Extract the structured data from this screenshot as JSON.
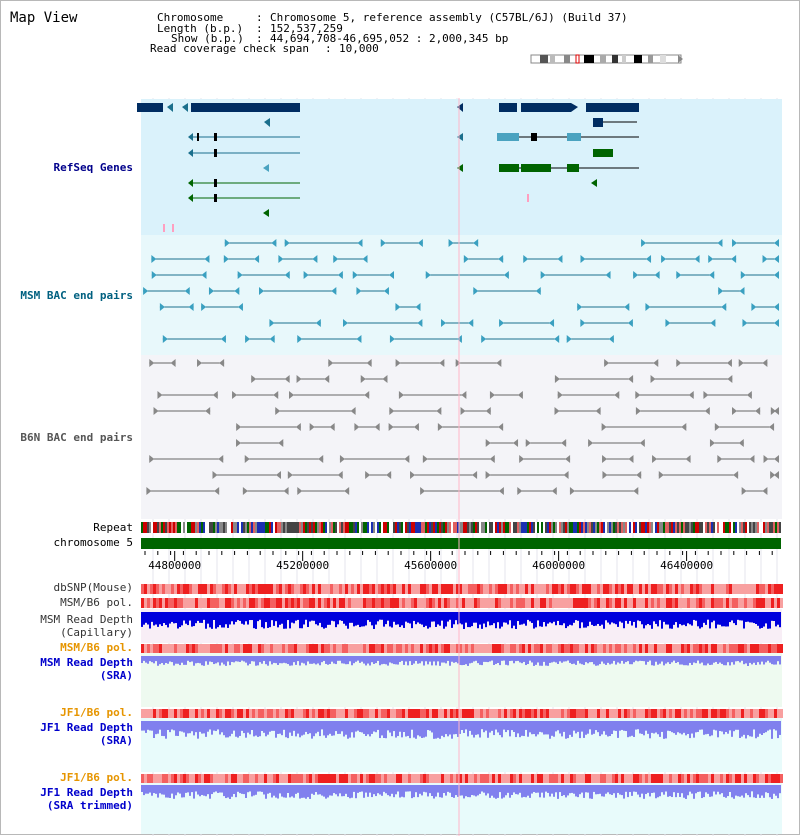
{
  "header": {
    "title": "Map View",
    "chromosome_key": "Chromosome",
    "chromosome_value": "Chromosome 5, reference assembly (C57BL/6J) (Build 37)",
    "length_key": "Length (b.p.)",
    "length_value": "152,537,259",
    "show_key": "Show (b.p.)",
    "show_value": "44,694,708-46,695,052 : 2,000,345 bp",
    "coverage_key": "Read coverage check span",
    "coverage_value": "10,000",
    "separator": ":"
  },
  "tracks": {
    "refseq_label": "RefSeq Genes",
    "msm_bac_label": "MSM BAC end pairs",
    "b6n_bac_label": "B6N BAC end pairs",
    "repeat_label": "Repeat",
    "chromosome_label": "chromosome 5",
    "dbsnp_label": "dbSNP(Mouse)",
    "msm_b6_pol_1": "MSM/B6 pol.",
    "msm_depth_cap_1": "MSM Read Depth",
    "msm_depth_cap_2": "(Capillary)",
    "msm_b6_pol_2": "MSM/B6 pol.",
    "msm_depth_sra_1": "MSM Read Depth",
    "msm_depth_sra_2": "(SRA)",
    "jf1_b6_pol_1": "JF1/B6 pol.",
    "jf1_depth_sra_1": "JF1 Read Depth",
    "jf1_depth_sra_2": "(SRA)",
    "jf1_b6_pol_2": "JF1/B6 pol.",
    "jf1_depth_trim_1": "JF1 Read Depth",
    "jf1_depth_trim_2": "(SRA trimmed)"
  },
  "axis": {
    "ticks": [
      {
        "label": "44800000",
        "pos": 44800000
      },
      {
        "label": "45200000",
        "pos": 45200000
      },
      {
        "label": "45600000",
        "pos": 45600000
      },
      {
        "label": "46000000",
        "pos": 46000000
      },
      {
        "label": "46400000",
        "pos": 46400000
      }
    ]
  },
  "colors": {
    "refseq_label": "#00008b",
    "msm_bac_label": "#006080",
    "b6n_bac_label": "#555555",
    "pol_orange": "#e69500",
    "depth_blue": "#0000cc",
    "refseq_bg": "#daf2fb",
    "msm_bg": "#e8f8fb",
    "b6n_bg": "#f4f4f8",
    "chrom_bar": "#006400",
    "gene_dark": "#002d62",
    "gene_line": "#1a6f8c",
    "gene_green": "#006400"
  }
}
